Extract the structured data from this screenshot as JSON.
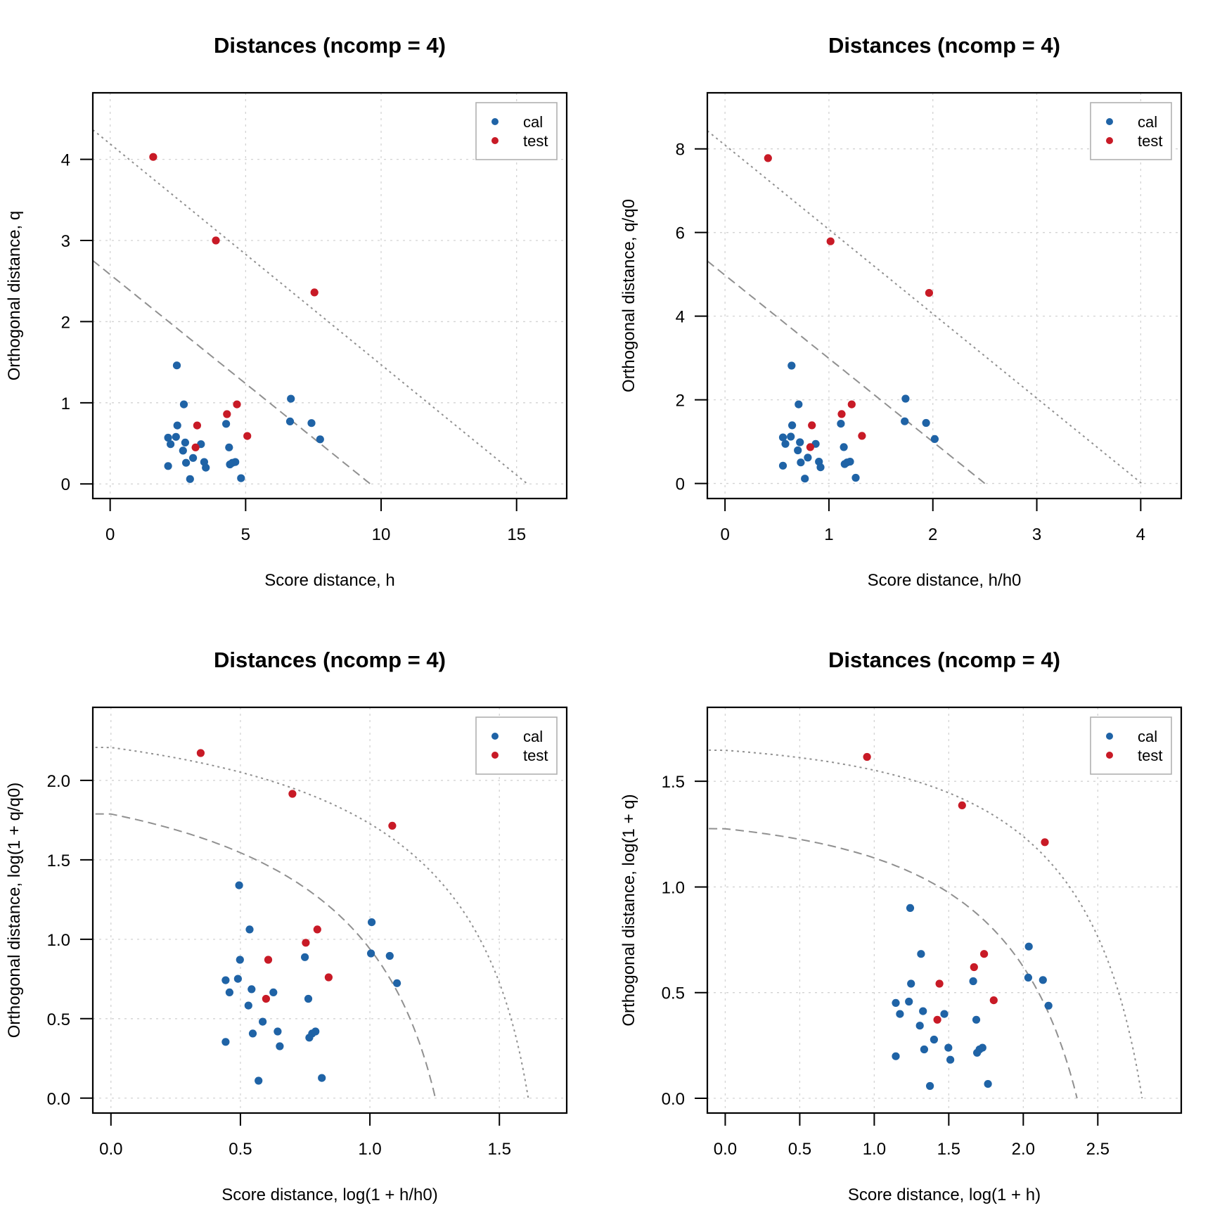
{
  "colors": {
    "cal": "#1f63a6",
    "test": "#c81a26",
    "limits": "#909090",
    "grid": "#d3d3d3"
  },
  "chart_data": [
    {
      "type": "scatter",
      "title": "Distances (ncomp = 4)",
      "xlabel": "Score distance, h",
      "ylabel": "Orthogonal distance, q",
      "xlim": [
        -0.64,
        16.85
      ],
      "ylim": [
        -0.18,
        4.82
      ],
      "xticks": [
        0,
        5,
        10,
        15
      ],
      "xtick_labels": [
        "0",
        "5",
        "10",
        "15"
      ],
      "yticks": [
        0,
        1,
        2,
        3,
        4
      ],
      "ytick_labels": [
        "0",
        "1",
        "2",
        "3",
        "4"
      ],
      "grid": true,
      "legend_position": "top-right",
      "transform": "none",
      "limits": {
        "extreme": {
          "x0": 9.6,
          "y0": 2.58
        },
        "outlier": {
          "x0": 15.4,
          "y0": 4.19
        },
        "shape": "linear"
      }
    },
    {
      "type": "scatter",
      "title": "Distances (ncomp = 4)",
      "xlabel": "Score distance, h/h0",
      "ylabel": "Orthogonal distance, q/q0",
      "xlim": [
        -0.17,
        4.39
      ],
      "ylim": [
        -0.36,
        9.34
      ],
      "xticks": [
        0,
        1,
        2,
        3,
        4
      ],
      "xtick_labels": [
        "0",
        "1",
        "2",
        "3",
        "4"
      ],
      "yticks": [
        0,
        2,
        4,
        6,
        8
      ],
      "ytick_labels": [
        "0",
        "2",
        "4",
        "6",
        "8"
      ],
      "grid": true,
      "legend_position": "top-right",
      "transform": "scaled",
      "limits": {
        "extreme": {
          "x0": 2.5,
          "y0": 4.98
        },
        "outlier": {
          "x0": 4.01,
          "y0": 8.09
        },
        "shape": "linear"
      }
    },
    {
      "type": "scatter",
      "title": "Distances (ncomp = 4)",
      "xlabel": "Score distance, log(1 + h/h0)",
      "ylabel": "Orthogonal distance, log(1 + q/q0)",
      "xlim": [
        -0.07,
        1.76
      ],
      "ylim": [
        -0.094,
        2.46
      ],
      "xticks": [
        0,
        0.5,
        1,
        1.5
      ],
      "xtick_labels": [
        "0.0",
        "0.5",
        "1.0",
        "1.5"
      ],
      "yticks": [
        0,
        0.5,
        1,
        1.5,
        2
      ],
      "ytick_labels": [
        "0.0",
        "0.5",
        "1.0",
        "1.5",
        "2.0"
      ],
      "grid": true,
      "legend_position": "top-right",
      "transform": "log-scaled",
      "limits": {
        "extreme": {
          "x0": 2.5,
          "y0": 4.98
        },
        "outlier": {
          "x0": 4.01,
          "y0": 8.09
        },
        "shape": "log"
      }
    },
    {
      "type": "scatter",
      "title": "Distances (ncomp = 4)",
      "xlabel": "Score distance, log(1 + h)",
      "ylabel": "Orthogonal distance, log(1 + q)",
      "xlim": [
        -0.12,
        3.06
      ],
      "ylim": [
        -0.07,
        1.85
      ],
      "xticks": [
        0,
        0.5,
        1,
        1.5,
        2,
        2.5
      ],
      "xtick_labels": [
        "0.0",
        "0.5",
        "1.0",
        "1.5",
        "2.0",
        "2.5"
      ],
      "yticks": [
        0,
        0.5,
        1,
        1.5
      ],
      "ytick_labels": [
        "0.0",
        "0.5",
        "1.0",
        "1.5"
      ],
      "grid": true,
      "legend_position": "top-right",
      "transform": "log",
      "limits": {
        "extreme": {
          "x0": 9.6,
          "y0": 2.58
        },
        "outlier": {
          "x0": 15.4,
          "y0": 4.19
        },
        "shape": "log"
      }
    }
  ],
  "scaling": {
    "h0": 3.84,
    "q_scale": 1.93
  },
  "series": {
    "legend": [
      "cal",
      "test"
    ],
    "cal": {
      "h": [
        2.46,
        2.72,
        2.48,
        4.28,
        6.67,
        6.64,
        7.43,
        7.75,
        2.14,
        2.43,
        2.23,
        2.77,
        3.35,
        2.69,
        3.06,
        2.8,
        3.47,
        3.53,
        2.14,
        4.39,
        4.51,
        4.62,
        4.42,
        2.95,
        4.83
      ],
      "q": [
        1.46,
        0.98,
        0.72,
        0.74,
        1.05,
        0.77,
        0.75,
        0.55,
        0.57,
        0.58,
        0.49,
        0.51,
        0.49,
        0.41,
        0.32,
        0.26,
        0.27,
        0.2,
        0.22,
        0.45,
        0.26,
        0.27,
        0.24,
        0.06,
        0.07
      ]
    },
    "test": {
      "h": [
        1.59,
        3.9,
        7.54,
        4.31,
        4.68,
        3.21,
        5.06,
        3.15
      ],
      "q": [
        4.03,
        3.0,
        2.36,
        0.86,
        0.98,
        0.72,
        0.59,
        0.45
      ]
    }
  }
}
